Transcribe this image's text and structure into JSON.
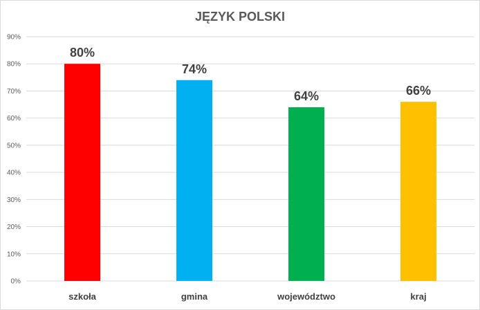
{
  "chart_data": {
    "type": "bar",
    "title": "JĘZYK POLSKI",
    "categories": [
      "szkoła",
      "gmina",
      "województwo",
      "kraj"
    ],
    "values": [
      80,
      74,
      64,
      66
    ],
    "value_labels": [
      "80%",
      "74%",
      "64%",
      "66%"
    ],
    "colors": [
      "#ff0000",
      "#00b0f0",
      "#00b050",
      "#ffc000"
    ],
    "ylim": [
      0,
      90
    ],
    "yticks": [
      0,
      10,
      20,
      30,
      40,
      50,
      60,
      70,
      80,
      90
    ],
    "ytick_labels": [
      "0%",
      "10%",
      "20%",
      "30%",
      "40%",
      "50%",
      "60%",
      "70%",
      "80%",
      "90%"
    ],
    "xlabel": "",
    "ylabel": "",
    "grid": true,
    "legend": "none"
  }
}
